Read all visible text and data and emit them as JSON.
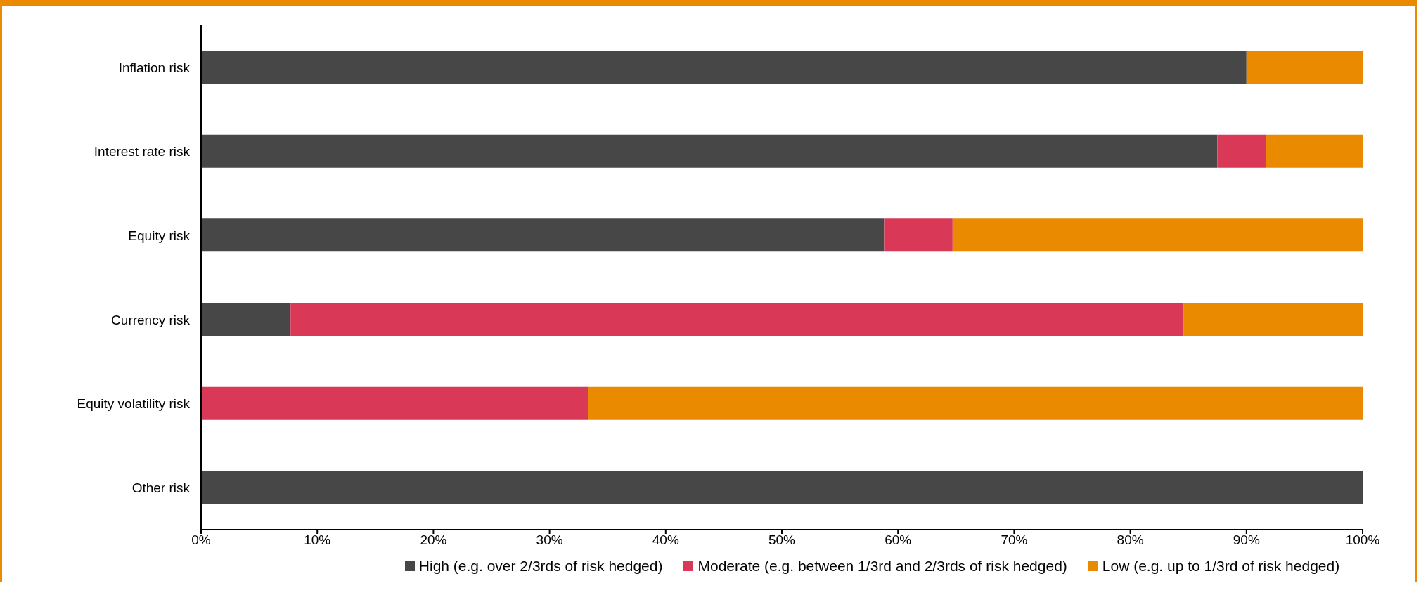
{
  "chart_data": {
    "type": "bar",
    "orientation": "horizontal",
    "stacked": true,
    "categories": [
      "Inflation risk",
      "Interest rate risk",
      "Equity risk",
      "Currency risk",
      "Equity volatility risk",
      "Other risk"
    ],
    "series": [
      {
        "name": "High (e.g. over 2/3rds of risk hedged)",
        "color": "#474747",
        "values": [
          90,
          87.5,
          58.8,
          7.7,
          0,
          100
        ]
      },
      {
        "name": "Moderate (e.g. between 1/3rd and 2/3rds of risk hedged)",
        "color": "#d93957",
        "values": [
          0,
          4.2,
          5.9,
          76.9,
          33.3,
          0
        ]
      },
      {
        "name": "Low (e.g. up to 1/3rd of risk hedged)",
        "color": "#ea8a00",
        "values": [
          10,
          8.3,
          35.3,
          15.4,
          66.7,
          0
        ]
      }
    ],
    "xlim": [
      0,
      100
    ],
    "xticks": [
      {
        "value": 0,
        "label": "0%"
      },
      {
        "value": 10,
        "label": "10%"
      },
      {
        "value": 20,
        "label": "20%"
      },
      {
        "value": 30,
        "label": "30%"
      },
      {
        "value": 40,
        "label": "40%"
      },
      {
        "value": 50,
        "label": "50%"
      },
      {
        "value": 60,
        "label": "60%"
      },
      {
        "value": 70,
        "label": "70%"
      },
      {
        "value": 80,
        "label": "80%"
      },
      {
        "value": 90,
        "label": "90%"
      },
      {
        "value": 100,
        "label": "100%"
      }
    ],
    "grid": false,
    "legend": "bottom"
  }
}
